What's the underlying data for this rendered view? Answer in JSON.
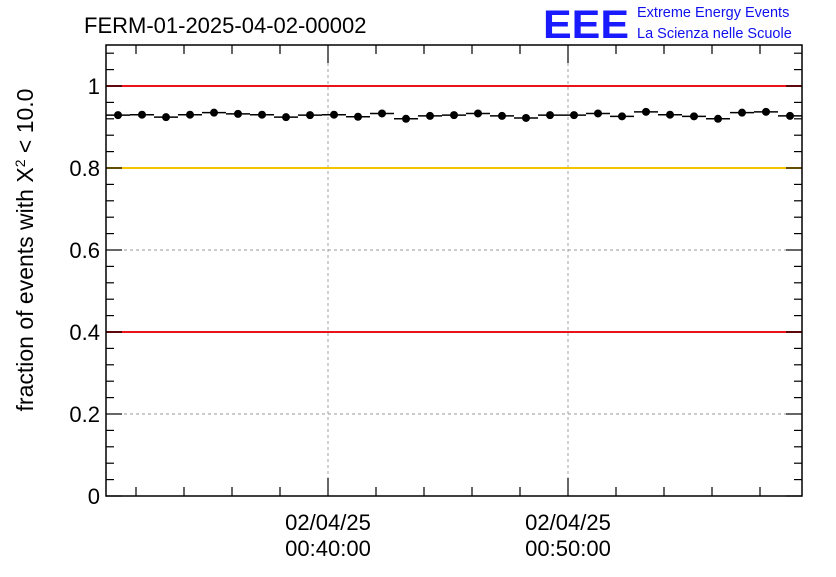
{
  "header": {
    "run_title": "FERM-01-2025-04-02-00002",
    "logo_text": "EEE",
    "logo_line1": "Extreme Energy Events",
    "logo_line2": "La Scienza nelle Scuole"
  },
  "chart_data": {
    "type": "scatter",
    "title": "FERM-01-2025-04-02-00002",
    "ylabel_parts": {
      "prefix": "fraction of events with ",
      "chi": "Χ",
      "sup": "2",
      "suffix": " < 10.0"
    },
    "ylim": [
      0,
      1.1
    ],
    "yticks": [
      {
        "value": 0,
        "label": "0"
      },
      {
        "value": 0.2,
        "label": "0.2"
      },
      {
        "value": 0.4,
        "label": "0.4"
      },
      {
        "value": 0.6,
        "label": "0.6"
      },
      {
        "value": 0.8,
        "label": "0.8"
      },
      {
        "value": 1.0,
        "label": "1"
      }
    ],
    "xlim": [
      "2025-04-02 00:30:45",
      "2025-04-02 00:59:45"
    ],
    "xticks": [
      {
        "value": "2025-04-02 00:40:00",
        "date_label": "02/04/25",
        "time_label": "00:40:00"
      },
      {
        "value": "2025-04-02 00:50:00",
        "date_label": "02/04/25",
        "time_label": "00:50:00"
      }
    ],
    "grid": true,
    "reference_lines": [
      {
        "y": 1.0,
        "color": "#e8141a"
      },
      {
        "y": 0.8,
        "color": "#f5c200"
      },
      {
        "y": 0.4,
        "color": "#e8141a"
      }
    ],
    "series": [
      {
        "color": "#000000",
        "bin_width_minutes": 1,
        "x": [
          "2025-04-02 00:31:15",
          "2025-04-02 00:32:15",
          "2025-04-02 00:33:15",
          "2025-04-02 00:34:15",
          "2025-04-02 00:35:15",
          "2025-04-02 00:36:15",
          "2025-04-02 00:37:15",
          "2025-04-02 00:38:15",
          "2025-04-02 00:39:15",
          "2025-04-02 00:40:15",
          "2025-04-02 00:41:15",
          "2025-04-02 00:42:15",
          "2025-04-02 00:43:15",
          "2025-04-02 00:44:15",
          "2025-04-02 00:45:15",
          "2025-04-02 00:46:15",
          "2025-04-02 00:47:15",
          "2025-04-02 00:48:15",
          "2025-04-02 00:49:15",
          "2025-04-02 00:50:15",
          "2025-04-02 00:51:15",
          "2025-04-02 00:52:15",
          "2025-04-02 00:53:15",
          "2025-04-02 00:54:15",
          "2025-04-02 00:55:15",
          "2025-04-02 00:56:15",
          "2025-04-02 00:57:15",
          "2025-04-02 00:58:15",
          "2025-04-02 00:59:15"
        ],
        "y": [
          0.929,
          0.93,
          0.924,
          0.93,
          0.935,
          0.932,
          0.93,
          0.924,
          0.929,
          0.93,
          0.925,
          0.933,
          0.92,
          0.927,
          0.929,
          0.933,
          0.927,
          0.922,
          0.929,
          0.929,
          0.933,
          0.926,
          0.937,
          0.93,
          0.926,
          0.92,
          0.935,
          0.937,
          0.927
        ]
      }
    ]
  }
}
